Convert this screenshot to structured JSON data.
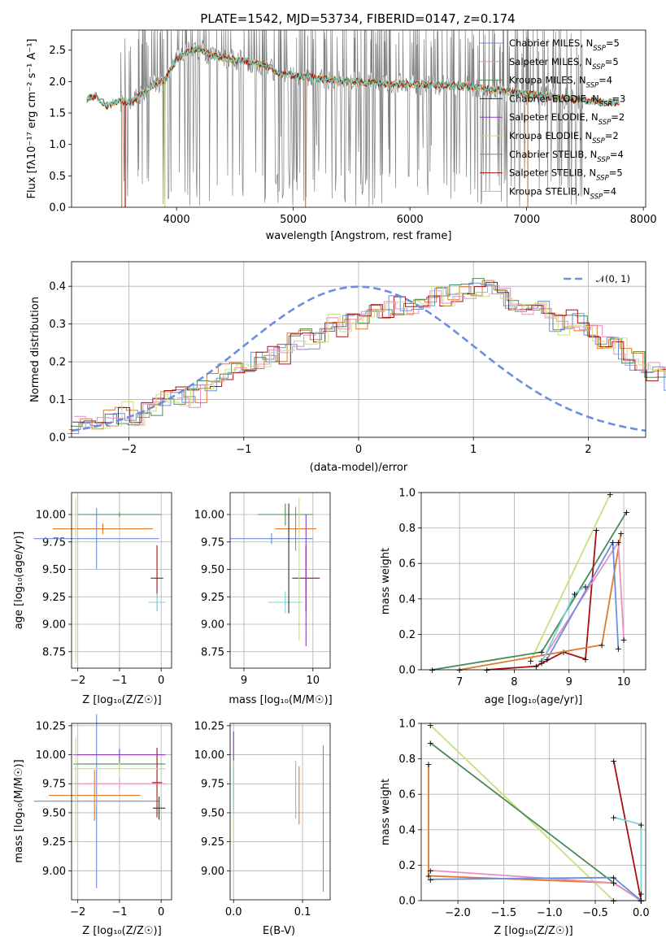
{
  "title": "PLATE=1542, MJD=53734, FIBERID=0147, z=0.174",
  "palette": {
    "blue": "#6a8fe0",
    "orange": "#e07a2a",
    "green": "#4c8a55",
    "darkgreen": "#2f6a40",
    "purple": "#8a3ab9",
    "pink": "#e88fc2",
    "lime": "#c8e07a",
    "gray": "#7f7f7f",
    "red": "#a81010",
    "cyan": "#7ad3d8",
    "lightgreen": "#c4e89a"
  },
  "panels": {
    "spectrum": {
      "xlabel": "wavelength [Angstrom, rest frame]",
      "ylabel": "Flux [fλ10⁻¹⁷ erg cm⁻² s⁻¹ A⁻¹]",
      "xticks": [
        "4000",
        "5000",
        "6000",
        "7000",
        "8000"
      ],
      "yticks": [
        "0.0",
        "0.5",
        "1.0",
        "1.5",
        "2.0",
        "2.5"
      ],
      "legend": [
        {
          "label": "Chabrier MILES, N",
          "sub": "SSP",
          "rest": "=5",
          "color": "#6a8fe0"
        },
        {
          "label": "Salpeter MILES, N",
          "sub": "SSP",
          "rest": "=5",
          "color": "#e88fc2"
        },
        {
          "label": "Kroupa MILES, N",
          "sub": "SSP",
          "rest": "=4",
          "color": "#4c8a55"
        },
        {
          "label": "Chabrier ELODIE, N",
          "sub": "SSP",
          "rest": "=3",
          "color": "#2f2f2f"
        },
        {
          "label": "Salpeter ELODIE, N",
          "sub": "SSP",
          "rest": "=2",
          "color": "#8a3ab9"
        },
        {
          "label": "Kroupa ELODIE, N",
          "sub": "SSP",
          "rest": "=2",
          "color": "#c8e07a"
        },
        {
          "label": "Chabrier STELIB, N",
          "sub": "SSP",
          "rest": "=4",
          "color": "#7f7f7f"
        },
        {
          "label": "Salpeter STELIB, N",
          "sub": "SSP",
          "rest": "=5",
          "color": "#a81010"
        },
        {
          "label": "Kroupa STELIB, N",
          "sub": "SSP",
          "rest": "=4",
          "color": "#7ad3d8"
        }
      ]
    },
    "residuals": {
      "xlabel": "(data-model)/error",
      "ylabel": "Normed distribution",
      "xticks": [
        "−2",
        "−1",
        "0",
        "1",
        "2"
      ],
      "yticks": [
        "0.0",
        "0.1",
        "0.2",
        "0.3",
        "0.4"
      ],
      "legend_label": "𝒩(0, 1)"
    },
    "age_z": {
      "xlabel": "Z [log₁₀(Z/Z☉)]",
      "ylabel": "age  [log₁₀(age/yr)]",
      "xticks": [
        "−2",
        "−1",
        "0"
      ],
      "yticks": [
        "8.75",
        "9.00",
        "9.25",
        "9.50",
        "9.75",
        "10.00"
      ]
    },
    "age_mass": {
      "xlabel": "mass [log₁₀(M/M☉)]",
      "xticks": [
        "9",
        "10"
      ],
      "yticks": [
        "8.75",
        "9.00",
        "9.25",
        "9.50",
        "9.75",
        "10.00"
      ]
    },
    "mw_age": {
      "xlabel": "age  [log₁₀(age/yr)]",
      "ylabel": "mass weight",
      "xticks": [
        "7",
        "8",
        "9",
        "10"
      ],
      "yticks": [
        "0.0",
        "0.2",
        "0.4",
        "0.6",
        "0.8",
        "1.0"
      ]
    },
    "mass_z": {
      "xlabel": "Z [log₁₀(Z/Z☉)]",
      "ylabel": "mass [log₁₀(M/M☉)]",
      "xticks": [
        "−2",
        "−1",
        "0"
      ],
      "yticks": [
        "9.00",
        "9.25",
        "9.50",
        "9.75",
        "10.00",
        "10.25"
      ]
    },
    "mass_ebv": {
      "xlabel": "E(B-V)",
      "xticks": [
        "0.0",
        "0.1"
      ],
      "yticks": [
        "9.00",
        "9.25",
        "9.50",
        "9.75",
        "10.00",
        "10.25"
      ]
    },
    "mw_z": {
      "xlabel": "Z [log₁₀(Z/Z☉)]",
      "ylabel": "mass weight",
      "xticks": [
        "−2.0",
        "−1.5",
        "−1.0",
        "−0.5",
        "0.0"
      ],
      "yticks": [
        "0.0",
        "0.2",
        "0.4",
        "0.6",
        "0.8",
        "1.0"
      ]
    }
  },
  "chart_data": [
    {
      "type": "line",
      "title": "PLATE=1542, MJD=53734, FIBERID=0147, z=0.174",
      "xlabel": "wavelength [Angstrom, rest frame]",
      "ylabel": "Flux [fλ10⁻¹⁷ erg cm⁻² s⁻¹ A⁻¹]",
      "xlim": [
        3100,
        8020
      ],
      "ylim": [
        0.0,
        2.82
      ],
      "continuum_model": {
        "x": [
          3230,
          3300,
          3400,
          3500,
          3600,
          3700,
          3800,
          3900,
          4000,
          4100,
          4200,
          4300,
          4400,
          4500,
          4600,
          4700,
          4800,
          4900,
          5000,
          5200,
          5400,
          5600,
          5800,
          6000,
          6200,
          6400,
          6600,
          6800,
          7000,
          7200,
          7400,
          7600,
          7800
        ],
        "y": [
          1.72,
          1.78,
          1.62,
          1.7,
          1.66,
          1.8,
          1.95,
          2.02,
          2.35,
          2.48,
          2.52,
          2.42,
          2.38,
          2.35,
          2.32,
          2.28,
          2.22,
          2.12,
          2.1,
          2.05,
          2.02,
          1.98,
          1.97,
          1.96,
          1.95,
          1.93,
          1.9,
          1.85,
          1.8,
          1.76,
          1.72,
          1.68,
          1.66
        ]
      }
    },
    {
      "type": "bar",
      "xlabel": "(data-model)/error",
      "ylabel": "Normed distribution",
      "xlim": [
        -2.5,
        2.5
      ],
      "ylim": [
        0.0,
        0.465
      ],
      "bin_edges_start": -2.5,
      "bin_width": 0.1,
      "series_mean": [
        0.028,
        0.032,
        0.045,
        0.05,
        0.065,
        0.055,
        0.07,
        0.085,
        0.095,
        0.11,
        0.105,
        0.12,
        0.14,
        0.17,
        0.18,
        0.16,
        0.21,
        0.22,
        0.22,
        0.25,
        0.26,
        0.25,
        0.3,
        0.29,
        0.3,
        0.31,
        0.34,
        0.33,
        0.35,
        0.35,
        0.36,
        0.37,
        0.37,
        0.38,
        0.38,
        0.4,
        0.39,
        0.38,
        0.36,
        0.34,
        0.33,
        0.34,
        0.3,
        0.31,
        0.3,
        0.27,
        0.25,
        0.24,
        0.21,
        0.2,
        0.17,
        0.17,
        0.15,
        0.13,
        0.11,
        0.1,
        0.09,
        0.08,
        0.07,
        0.06,
        0.05,
        0.04,
        0.035,
        0.03
      ],
      "normal_curve": "N(0,1)"
    },
    {
      "type": "scatter",
      "xlabel": "Z [log₁₀(Z/Z☉)]",
      "ylabel": "age  [log₁₀(age/yr)]",
      "xlim": [
        -2.15,
        0.25
      ],
      "ylim": [
        8.6,
        10.2
      ],
      "points": [
        {
          "x": -1.55,
          "y": 9.78,
          "xerr": 1.5,
          "yerr": 0.28,
          "color": "#6a8fe0"
        },
        {
          "x": -1.4,
          "y": 9.87,
          "xerr": 1.2,
          "yerr": 0.05,
          "color": "#e07a2a"
        },
        {
          "x": -1.0,
          "y": 10.0,
          "xerr": 1.0,
          "yerr": 0.02,
          "color": "#4c8a55"
        },
        {
          "x": -0.1,
          "y": 9.42,
          "xerr": 0.15,
          "yerr": 0.3,
          "color": "#a81010"
        },
        {
          "x": -0.1,
          "y": 9.2,
          "xerr": 0.2,
          "yerr": 0.08,
          "color": "#7ad3d8"
        },
        {
          "x": -2.05,
          "y": 9.4,
          "xerr": 0.0,
          "yerr": 0.75,
          "color": "#c8e07a"
        }
      ]
    },
    {
      "type": "line",
      "xlabel": "age  [log₁₀(age/yr)]",
      "ylabel": "mass weight",
      "xlim": [
        6.3,
        10.4
      ],
      "ylim": [
        0.0,
        1.0
      ],
      "series": [
        {
          "color": "#c8e07a",
          "x": [
            8.3,
            9.75
          ],
          "y": [
            0.05,
            0.99
          ]
        },
        {
          "color": "#4c8a55",
          "x": [
            6.5,
            8.5,
            10.05
          ],
          "y": [
            0.0,
            0.1,
            0.89
          ]
        },
        {
          "color": "#a81010",
          "x": [
            7.5,
            8.4,
            8.9,
            9.3,
            9.5
          ],
          "y": [
            0.0,
            0.02,
            0.1,
            0.06,
            0.79
          ]
        },
        {
          "color": "#e07a2a",
          "x": [
            7.0,
            9.6,
            9.95
          ],
          "y": [
            0.0,
            0.14,
            0.77
          ]
        },
        {
          "color": "#e88fc2",
          "x": [
            8.5,
            9.9,
            10.0
          ],
          "y": [
            0.05,
            0.72,
            0.17
          ]
        },
        {
          "color": "#6a8fe0",
          "x": [
            8.6,
            9.8,
            9.9
          ],
          "y": [
            0.06,
            0.72,
            0.12
          ]
        },
        {
          "color": "#7ad3d8",
          "x": [
            8.5,
            9.1,
            9.3
          ],
          "y": [
            0.04,
            0.43,
            0.47
          ]
        }
      ]
    },
    {
      "type": "line",
      "xlabel": "Z [log₁₀(Z/Z☉)]",
      "ylabel": "mass weight",
      "xlim": [
        -2.4,
        0.05
      ],
      "ylim": [
        0.0,
        1.0
      ],
      "series": [
        {
          "color": "#c8e07a",
          "x": [
            -2.3,
            -0.3
          ],
          "y": [
            0.99,
            0.0
          ]
        },
        {
          "color": "#4c8a55",
          "x": [
            -2.3,
            -0.3,
            0.0
          ],
          "y": [
            0.89,
            0.1,
            0.0
          ]
        },
        {
          "color": "#a81010",
          "x": [
            -0.3,
            0.0
          ],
          "y": [
            0.79,
            0.0
          ]
        },
        {
          "color": "#e07a2a",
          "x": [
            -2.32,
            -2.32,
            -0.3,
            0.0
          ],
          "y": [
            0.77,
            0.14,
            0.1,
            0.0
          ]
        },
        {
          "color": "#e88fc2",
          "x": [
            -2.3,
            -0.3,
            0.0
          ],
          "y": [
            0.17,
            0.1,
            0.0
          ]
        },
        {
          "color": "#6a8fe0",
          "x": [
            -2.3,
            -0.3,
            0.0
          ],
          "y": [
            0.12,
            0.13,
            0.0
          ]
        },
        {
          "color": "#7ad3d8",
          "x": [
            -0.3,
            0.0,
            0.0
          ],
          "y": [
            0.47,
            0.43,
            0.04
          ]
        }
      ]
    }
  ]
}
